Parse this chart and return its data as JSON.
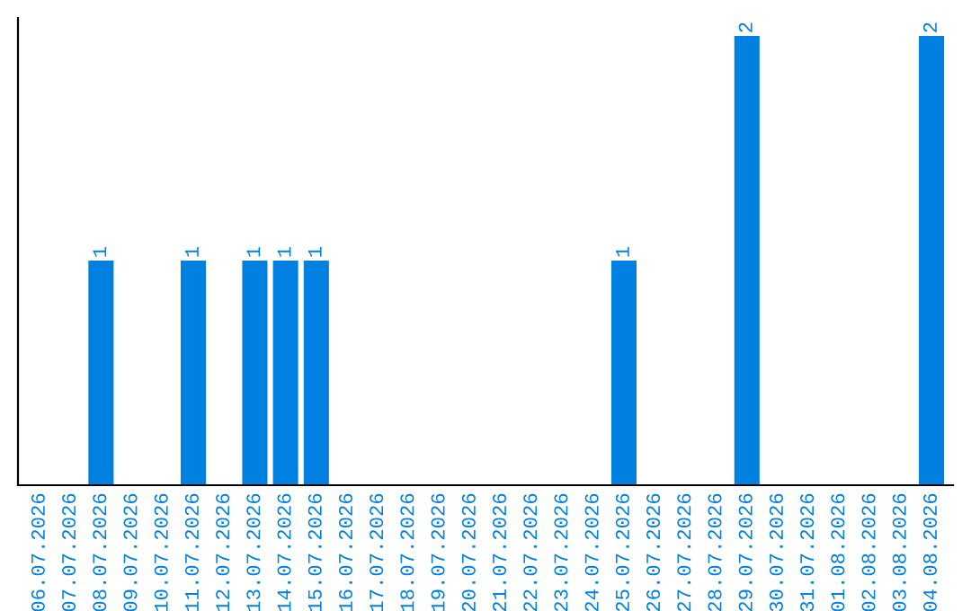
{
  "chart_data": {
    "type": "bar",
    "categories": [
      "06.07.2026",
      "07.07.2026",
      "08.07.2026",
      "09.07.2026",
      "10.07.2026",
      "11.07.2026",
      "12.07.2026",
      "13.07.2026",
      "14.07.2026",
      "15.07.2026",
      "16.07.2026",
      "17.07.2026",
      "18.07.2026",
      "19.07.2026",
      "20.07.2026",
      "21.07.2026",
      "22.07.2026",
      "23.07.2026",
      "24.07.2026",
      "25.07.2026",
      "26.07.2026",
      "27.07.2026",
      "28.07.2026",
      "29.07.2026",
      "30.07.2026",
      "31.07.2026",
      "01.08.2026",
      "02.08.2026",
      "03.08.2026",
      "04.08.2026"
    ],
    "values": [
      0,
      0,
      1,
      0,
      0,
      1,
      0,
      1,
      1,
      1,
      0,
      0,
      0,
      0,
      0,
      0,
      0,
      0,
      0,
      1,
      0,
      0,
      0,
      2,
      0,
      0,
      0,
      0,
      0,
      2
    ],
    "value_labels": [
      null,
      null,
      "1",
      null,
      null,
      "1",
      null,
      "1",
      "1",
      "1",
      null,
      null,
      null,
      null,
      null,
      null,
      null,
      null,
      null,
      "1",
      null,
      null,
      null,
      "2",
      null,
      null,
      null,
      null,
      null,
      "2"
    ],
    "color": "#0080e0",
    "ylim": [
      0,
      2.08
    ],
    "tick_labels": "x",
    "grid": false,
    "legend": false
  }
}
